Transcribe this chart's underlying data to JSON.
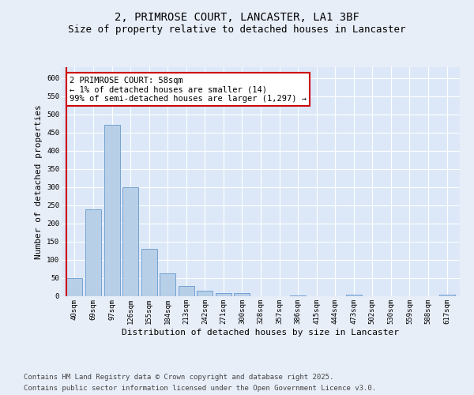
{
  "title_line1": "2, PRIMROSE COURT, LANCASTER, LA1 3BF",
  "title_line2": "Size of property relative to detached houses in Lancaster",
  "xlabel": "Distribution of detached houses by size in Lancaster",
  "ylabel": "Number of detached properties",
  "categories": [
    "40sqm",
    "69sqm",
    "97sqm",
    "126sqm",
    "155sqm",
    "184sqm",
    "213sqm",
    "242sqm",
    "271sqm",
    "300sqm",
    "328sqm",
    "357sqm",
    "386sqm",
    "415sqm",
    "444sqm",
    "473sqm",
    "502sqm",
    "530sqm",
    "559sqm",
    "588sqm",
    "617sqm"
  ],
  "values": [
    50,
    240,
    472,
    300,
    130,
    63,
    29,
    15,
    8,
    8,
    0,
    0,
    3,
    0,
    0,
    4,
    0,
    0,
    0,
    0,
    4
  ],
  "bar_color": "#b8cfe8",
  "bar_edgecolor": "#6699cc",
  "vline_color": "#cc0000",
  "annotation_text": "2 PRIMROSE COURT: 58sqm\n← 1% of detached houses are smaller (14)\n99% of semi-detached houses are larger (1,297) →",
  "annotation_box_edgecolor": "#cc0000",
  "ylim": [
    0,
    630
  ],
  "yticks": [
    0,
    50,
    100,
    150,
    200,
    250,
    300,
    350,
    400,
    450,
    500,
    550,
    600
  ],
  "footer_line1": "Contains HM Land Registry data © Crown copyright and database right 2025.",
  "footer_line2": "Contains public sector information licensed under the Open Government Licence v3.0.",
  "fig_bg_color": "#e8eef8",
  "plot_bg_color": "#dce8f8",
  "title_fontsize": 10,
  "subtitle_fontsize": 9,
  "tick_fontsize": 6.5,
  "axis_label_fontsize": 8,
  "footer_fontsize": 6.5,
  "annotation_fontsize": 7.5
}
